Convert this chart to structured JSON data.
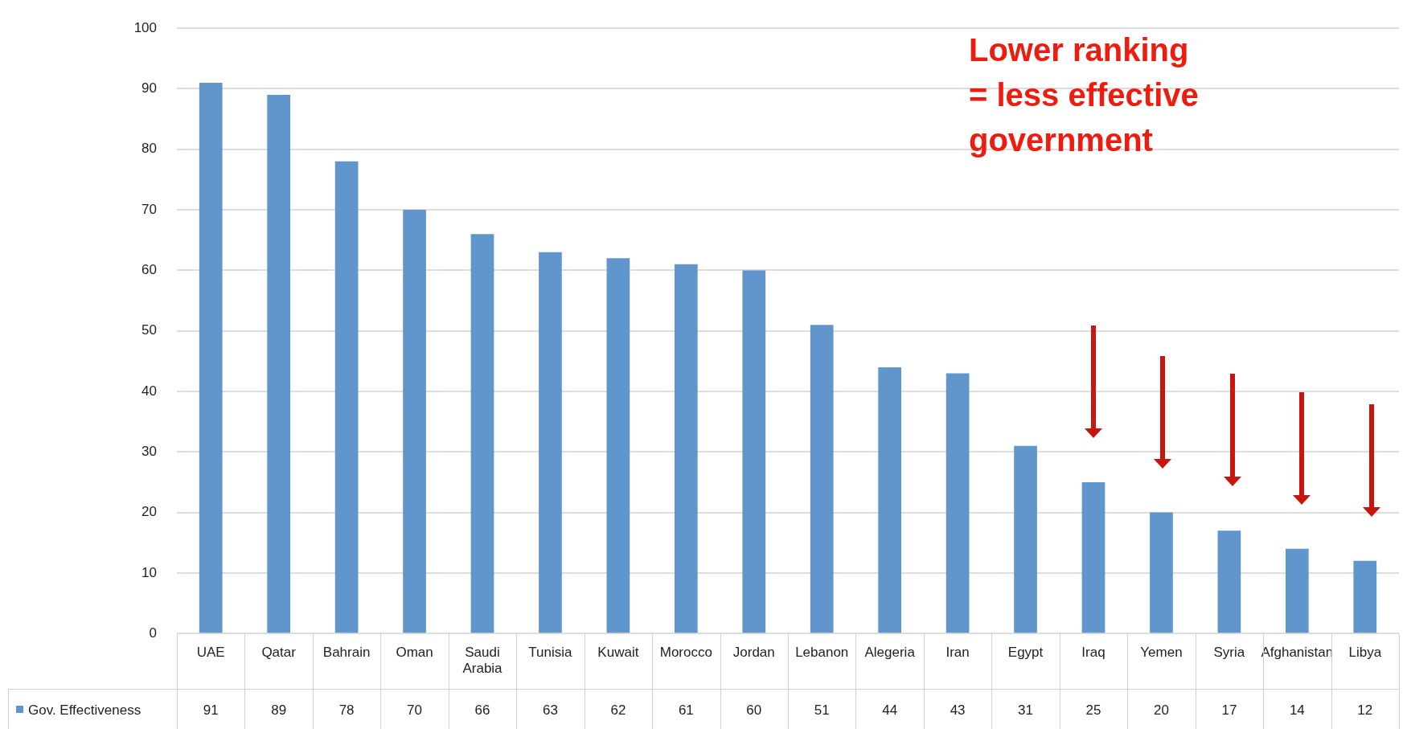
{
  "chart_data": {
    "type": "bar",
    "categories": [
      "UAE",
      "Qatar",
      "Bahrain",
      "Oman",
      "Saudi Arabia",
      "Tunisia",
      "Kuwait",
      "Morocco",
      "Jordan",
      "Lebanon",
      "Alegeria",
      "Iran",
      "Egypt",
      "Iraq",
      "Yemen",
      "Syria",
      "Afghanistan",
      "Libya"
    ],
    "series": [
      {
        "name": "Gov. Effectiveness",
        "color": "#6096cb",
        "values": [
          91,
          89,
          78,
          70,
          66,
          63,
          62,
          61,
          60,
          51,
          44,
          43,
          31,
          25,
          20,
          17,
          14,
          12
        ]
      }
    ],
    "ylim": [
      0,
      100
    ],
    "yticks": [
      0,
      10,
      20,
      30,
      40,
      50,
      60,
      70,
      80,
      90,
      100
    ],
    "grid": "y",
    "legend": "bottom",
    "data_labels": true,
    "annotations": [
      "Lower ranking = less effective government"
    ]
  }
}
